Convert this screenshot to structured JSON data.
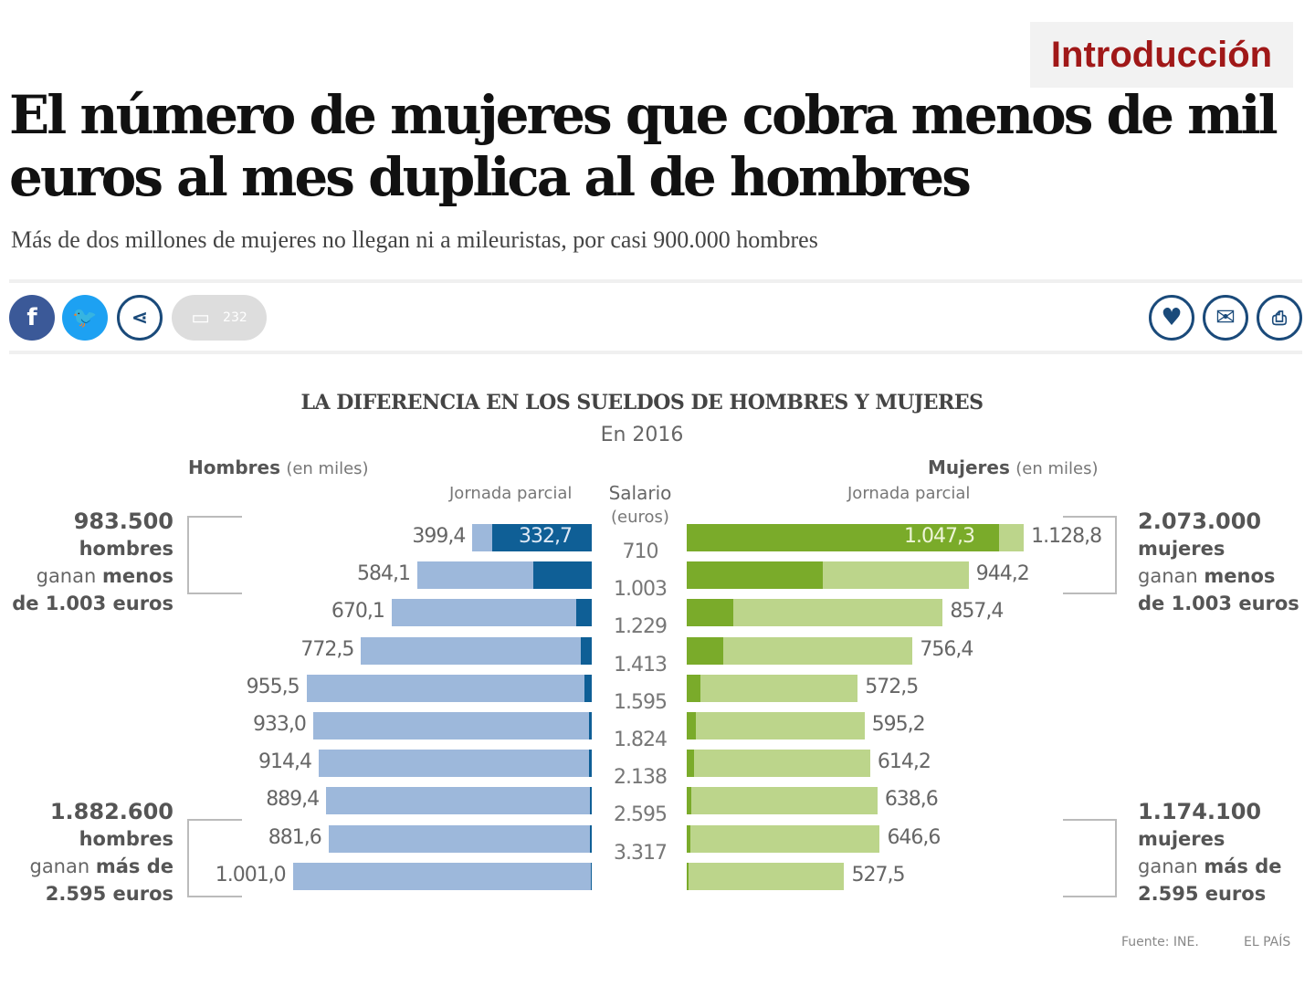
{
  "badge": "Introducción",
  "headline": "El número de mujeres que cobra menos de mil euros al mes duplica al de hombres",
  "subheadline": "Más de dos millones de mujeres no llegan ni a mileuristas, por casi 900.000 hombres",
  "share": {
    "comment_count": "232",
    "icons": [
      "facebook-icon",
      "twitter-icon",
      "share-icon",
      "comment-icon",
      "heart-icon",
      "mail-icon",
      "print-icon"
    ]
  },
  "chart_data": {
    "type": "bar",
    "title": "LA DIFERENCIA EN LOS SUELDOS DE HOMBRES Y MUJERES",
    "subtitle": "En 2016",
    "men_header": "Hombres",
    "men_unit": "(en miles)",
    "women_header": "Mujeres",
    "women_unit": "(en miles)",
    "part_time_label": "Jornada parcial",
    "salary_label": "Salario",
    "salary_unit": "(euros)",
    "salary_ticks": [
      "710",
      "1.003",
      "1.229",
      "1.413",
      "1.595",
      "1.824",
      "2.138",
      "2.595",
      "3.317"
    ],
    "series": [
      {
        "name": "Hombres",
        "values": [
          399.4,
          584.1,
          670.1,
          772.5,
          955.5,
          933.0,
          914.4,
          889.4,
          881.6,
          1001.0
        ],
        "labels": [
          "399,4",
          "584,1",
          "670,1",
          "772,5",
          "955,5",
          "933,0",
          "914,4",
          "889,4",
          "881,6",
          "1.001,0"
        ],
        "part_time": [
          332.7,
          196,
          52,
          37,
          24,
          10,
          8,
          6,
          5,
          4
        ],
        "part_time_label_first": "332,7",
        "color": "#9db8db",
        "part_color": "#0f5f96"
      },
      {
        "name": "Mujeres",
        "values": [
          1128.8,
          944.2,
          857.4,
          756.4,
          572.5,
          595.2,
          614.2,
          638.6,
          646.6,
          527.5
        ],
        "labels": [
          "1.128,8",
          "944,2",
          "857,4",
          "756,4",
          "572,5",
          "595,2",
          "614,2",
          "638,6",
          "646,6",
          "527,5"
        ],
        "part_time": [
          1047.3,
          456,
          156,
          122,
          46,
          30,
          24,
          15,
          12,
          6
        ],
        "part_time_label_first": "1.047,3",
        "color": "#bcd58b",
        "part_color": "#7aab2a"
      }
    ],
    "annotations": {
      "men_low": {
        "num": "983.500",
        "l1": "hombres",
        "l2a": "ganan ",
        "l2b": "menos",
        "l3": "de 1.003 euros"
      },
      "men_high": {
        "num": "1.882.600",
        "l1": "hombres",
        "l2a": "ganan ",
        "l2b": "más de",
        "l3": "2.595 euros"
      },
      "women_low": {
        "num": "2.073.000",
        "l1": "mujeres",
        "l2a": "ganan ",
        "l2b": "menos",
        "l3": "de 1.003 euros"
      },
      "women_high": {
        "num": "1.174.100",
        "l1": "mujeres",
        "l2a": "ganan ",
        "l2b": "más de",
        "l3": "2.595 euros"
      }
    },
    "source": "Fuente: INE.",
    "credit": "EL PAÍS"
  }
}
